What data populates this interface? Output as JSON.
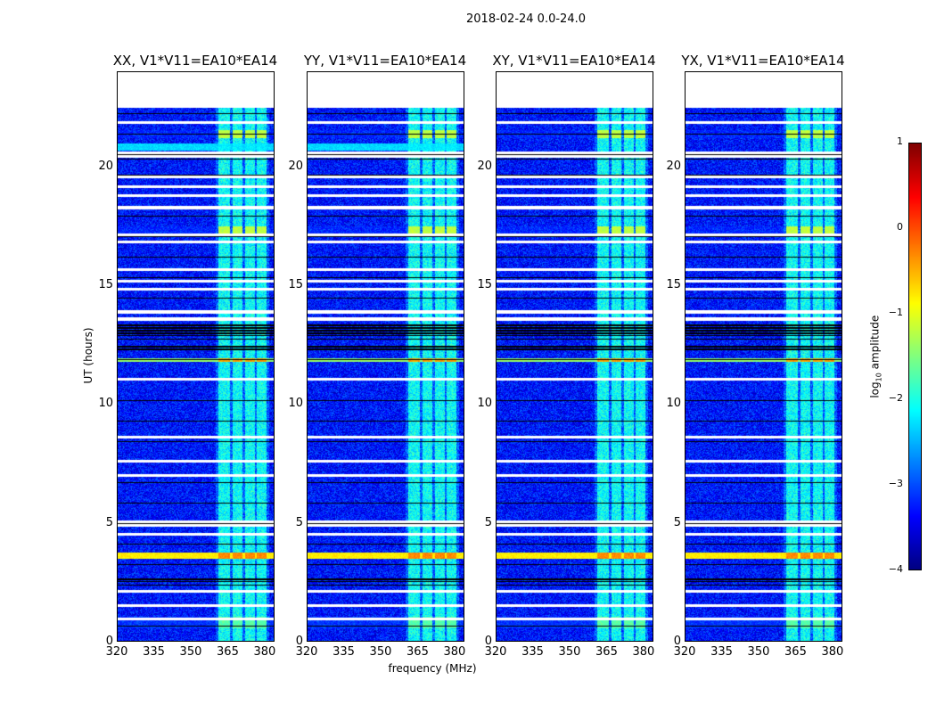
{
  "chart_data": {
    "type": "heatmap",
    "title": "2018-02-24 0.0-24.0",
    "xlabel": "frequency (MHz)",
    "ylabel": "UT (hours)",
    "xlim": [
      320,
      384
    ],
    "ylim": [
      0,
      24
    ],
    "xticks": [
      320,
      335,
      350,
      365,
      380
    ],
    "yticks": [
      0,
      5,
      10,
      15,
      20
    ],
    "colormap": "jet",
    "colorbar": {
      "label": "log10 amplitude",
      "label_main": "log",
      "label_sub": "10",
      "label_rest": " amplitude",
      "range": [
        -4,
        1
      ],
      "ticks": [
        1,
        0,
        -1,
        -2,
        -3,
        -4
      ],
      "tick_labels": [
        "1",
        "0",
        "−1",
        "−2",
        "−3",
        "−4"
      ]
    },
    "data_end_hour": 22.5,
    "background_level": -3.3,
    "rfi_channels_mhz": [
      [
        361,
        366
      ],
      [
        367,
        371
      ],
      [
        372,
        376
      ],
      [
        377,
        381
      ]
    ],
    "rfi_level": -2.1,
    "flagged_hours": [
      21.9,
      20.6,
      20.45,
      19.6,
      19.2,
      18.8,
      18.3,
      17.15,
      16.85,
      15.7,
      15.2,
      14.85,
      13.9,
      13.6,
      11.05,
      8.6,
      7.6,
      7.0,
      5.05,
      4.9,
      4.5,
      2.1,
      1.5,
      0.95
    ],
    "zero_bands_hours": [
      [
        12.9,
        13.4
      ],
      [
        12.3,
        12.5
      ],
      [
        20.35,
        20.45
      ],
      [
        2.5,
        2.7
      ]
    ],
    "events": [
      {
        "hour": 21.4,
        "width": 0.35,
        "rfi_level": -1.2,
        "broadband_level": -3.3
      },
      {
        "hour": 20.85,
        "width": 0.3,
        "rfi_level": -2.2,
        "broadband_level": -2.3,
        "pols": [
          "XX",
          "YY"
        ]
      },
      {
        "hour": 17.3,
        "width": 0.4,
        "rfi_level": -1.2,
        "broadband_level": -3.3
      },
      {
        "hour": 11.85,
        "width": 0.15,
        "rfi_level": -0.4,
        "broadband_level": -1.4
      },
      {
        "hour": 3.6,
        "width": 0.25,
        "rfi_level": -0.3,
        "broadband_level": -0.8
      },
      {
        "hour": 0.8,
        "width": 0.5,
        "rfi_level": -1.7,
        "broadband_level": -3.2
      }
    ],
    "panels": [
      {
        "title": "XX, V1*V11=EA10*EA14",
        "pol": "XX"
      },
      {
        "title": "YY, V1*V11=EA10*EA14",
        "pol": "YY"
      },
      {
        "title": "XY, V1*V11=EA10*EA14",
        "pol": "XY"
      },
      {
        "title": "YX, V1*V11=EA10*EA14",
        "pol": "YX"
      }
    ]
  }
}
